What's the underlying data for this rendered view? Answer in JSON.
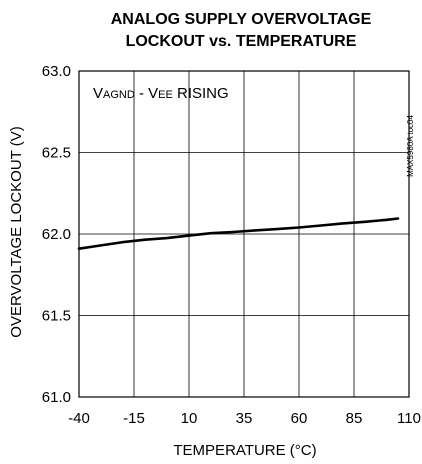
{
  "chart_data": {
    "type": "line",
    "title_lines": [
      "ANALOG SUPPLY OVERVOLTAGE",
      "LOCKOUT vs. TEMPERATURE"
    ],
    "xlabel": "TEMPERATURE (°C)",
    "ylabel": "OVERVOLTAGE LOCKOUT (V)",
    "xlim": [
      -40,
      110
    ],
    "ylim": [
      61.0,
      63.0
    ],
    "x_ticks": [
      -40,
      -15,
      10,
      35,
      60,
      85,
      110
    ],
    "y_ticks": [
      61.0,
      61.5,
      62.0,
      62.5,
      63.0
    ],
    "x_tick_labels": [
      "-40",
      "-15",
      "10",
      "35",
      "60",
      "85",
      "110"
    ],
    "y_tick_labels": [
      "61.0",
      "61.5",
      "62.0",
      "62.5",
      "63.0"
    ],
    "grid": true,
    "annotation": {
      "parts": [
        "V",
        "AGND",
        " - V",
        "EE",
        " RISING"
      ]
    },
    "side_id": "MAX5980A toc04",
    "series": [
      {
        "x": [
          -40,
          -30,
          -20,
          -10,
          0,
          10,
          20,
          30,
          40,
          50,
          60,
          70,
          80,
          90,
          100,
          105
        ],
        "y": [
          61.91,
          61.93,
          61.95,
          61.965,
          61.975,
          61.99,
          62.005,
          62.012,
          62.022,
          62.03,
          62.04,
          62.052,
          62.065,
          62.075,
          62.087,
          62.095
        ]
      }
    ]
  }
}
